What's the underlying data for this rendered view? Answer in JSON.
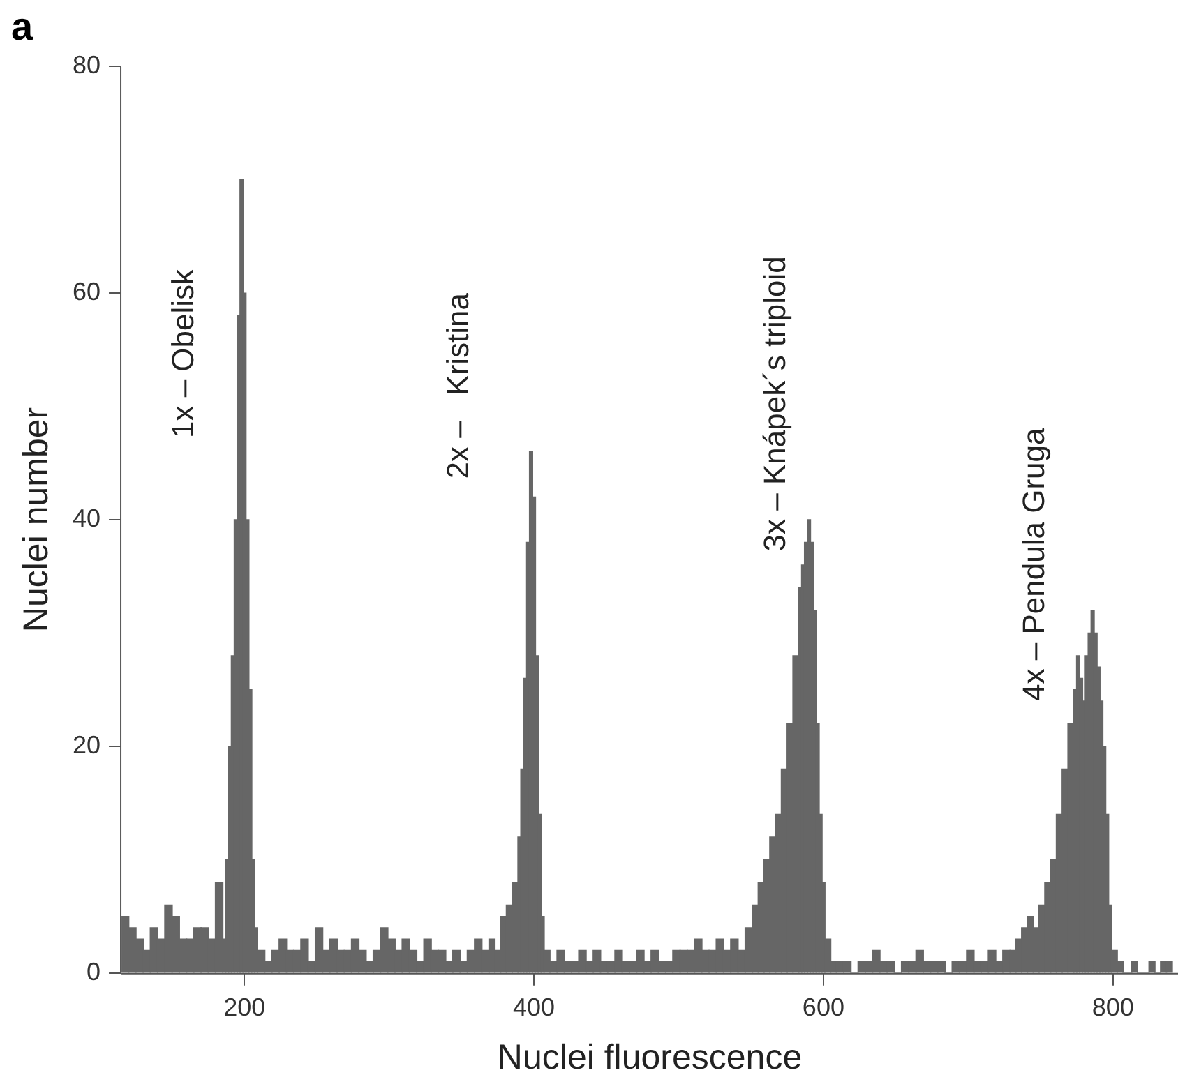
{
  "chart_data": {
    "type": "histogram",
    "title": "a",
    "xlabel": "Nuclei fluorescence",
    "ylabel": "Nuclei number",
    "color": "#666666",
    "bins": [
      115,
      120,
      125,
      130,
      135,
      140,
      145,
      150,
      155,
      160,
      165,
      170,
      175,
      180,
      185,
      187,
      189,
      191,
      193,
      195,
      197,
      199,
      201,
      203,
      205,
      207,
      209,
      214,
      219,
      224,
      229,
      234,
      239,
      244,
      249,
      254,
      259,
      264,
      269,
      274,
      279,
      284,
      289,
      294,
      299,
      304,
      309,
      314,
      319,
      324,
      329,
      334,
      339,
      344,
      349,
      354,
      359,
      364,
      369,
      373,
      377,
      381,
      385,
      389,
      391,
      393,
      395,
      397,
      399,
      401,
      403,
      405,
      407,
      411,
      416,
      421,
      426,
      431,
      436,
      441,
      446,
      451,
      456,
      461,
      466,
      471,
      476,
      481,
      486,
      491,
      496,
      501,
      506,
      511,
      516,
      521,
      526,
      531,
      536,
      541,
      546,
      551,
      555,
      559,
      563,
      567,
      571,
      575,
      579,
      583,
      585,
      587,
      589,
      591,
      593,
      595,
      597,
      599,
      601,
      605,
      609,
      614,
      619,
      624,
      629,
      634,
      639,
      644,
      649,
      654,
      659,
      664,
      669,
      674,
      679,
      684,
      689,
      694,
      699,
      704,
      709,
      714,
      719,
      724,
      729,
      733,
      737,
      741,
      745,
      749,
      753,
      757,
      761,
      765,
      769,
      773,
      775,
      777,
      779,
      781,
      783,
      785,
      787,
      789,
      791,
      793,
      795,
      797,
      799,
      803,
      807,
      813,
      817,
      825,
      829,
      833,
      837,
      841
    ],
    "values": [
      5,
      4,
      3,
      2,
      4,
      3,
      6,
      5,
      3,
      3,
      4,
      4,
      3,
      8,
      3,
      10,
      20,
      28,
      40,
      58,
      70,
      60,
      40,
      25,
      10,
      4,
      2,
      1,
      2,
      3,
      2,
      2,
      3,
      1,
      4,
      2,
      3,
      2,
      2,
      3,
      2,
      1,
      2,
      4,
      3,
      2,
      3,
      2,
      1,
      3,
      2,
      2,
      1,
      2,
      1,
      2,
      3,
      2,
      3,
      2,
      5,
      6,
      8,
      12,
      18,
      26,
      38,
      46,
      42,
      28,
      14,
      5,
      2,
      1,
      2,
      1,
      1,
      2,
      1,
      2,
      1,
      1,
      2,
      1,
      1,
      2,
      1,
      2,
      1,
      1,
      2,
      2,
      2,
      3,
      2,
      2,
      3,
      2,
      3,
      2,
      4,
      6,
      8,
      10,
      12,
      14,
      18,
      22,
      28,
      34,
      36,
      38,
      40,
      38,
      32,
      22,
      14,
      8,
      3,
      1,
      1,
      1,
      0,
      1,
      1,
      2,
      1,
      1,
      0,
      1,
      1,
      2,
      1,
      1,
      1,
      0,
      1,
      1,
      2,
      1,
      1,
      2,
      1,
      2,
      2,
      3,
      4,
      5,
      4,
      6,
      8,
      10,
      14,
      18,
      22,
      25,
      28,
      26,
      24,
      28,
      30,
      32,
      30,
      27,
      24,
      20,
      14,
      6,
      2,
      1,
      0,
      1,
      0,
      1,
      0,
      1,
      1
    ],
    "xlim": [
      115,
      845
    ],
    "ylim": [
      0,
      80
    ],
    "xticks": [
      200,
      400,
      600,
      800
    ],
    "yticks": [
      0,
      20,
      40,
      60,
      80
    ],
    "annotations": [
      "1x – Obelisk",
      "2x –   Kristina",
      "3x – Knápek´s triploid",
      "4x – Pendula Gruga"
    ]
  }
}
